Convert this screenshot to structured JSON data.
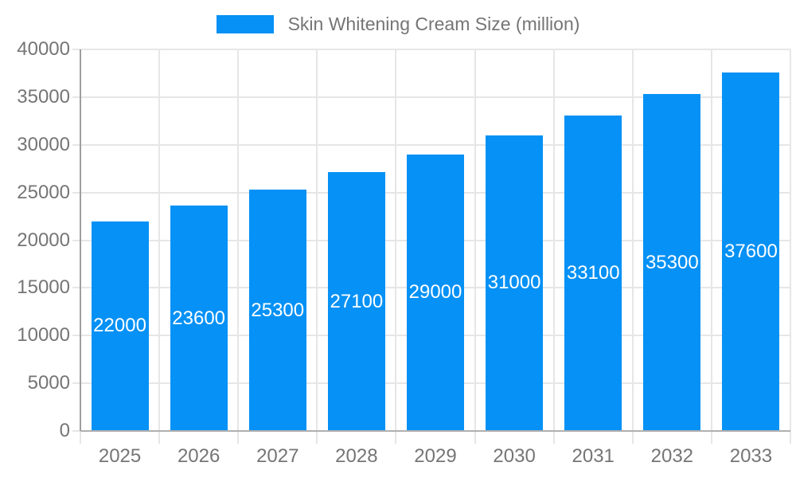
{
  "chart_data": {
    "type": "bar",
    "title": "",
    "series_name": "Skin Whitening Cream Size (million)",
    "categories": [
      "2025",
      "2026",
      "2027",
      "2028",
      "2029",
      "2030",
      "2031",
      "2032",
      "2033"
    ],
    "values": [
      22000,
      23600,
      25300,
      27100,
      29000,
      31000,
      33100,
      35300,
      37600
    ],
    "xlabel": "",
    "ylabel": "",
    "ylim": [
      0,
      40000
    ],
    "yticks": [
      0,
      5000,
      10000,
      15000,
      20000,
      25000,
      30000,
      35000,
      40000
    ],
    "grid": "horizontal+vertical",
    "legend_position": "top-center",
    "value_labels": "inside-bars-centered"
  },
  "colors": {
    "bar": "#0591f5",
    "grid": "#e6e6e6",
    "y_axis_line": "#9e9e9e",
    "baseline": "#b0b0b0",
    "axis_text": "#757575",
    "legend_text": "#757575",
    "value_label_text": "#ffffff",
    "background": "#ffffff"
  }
}
